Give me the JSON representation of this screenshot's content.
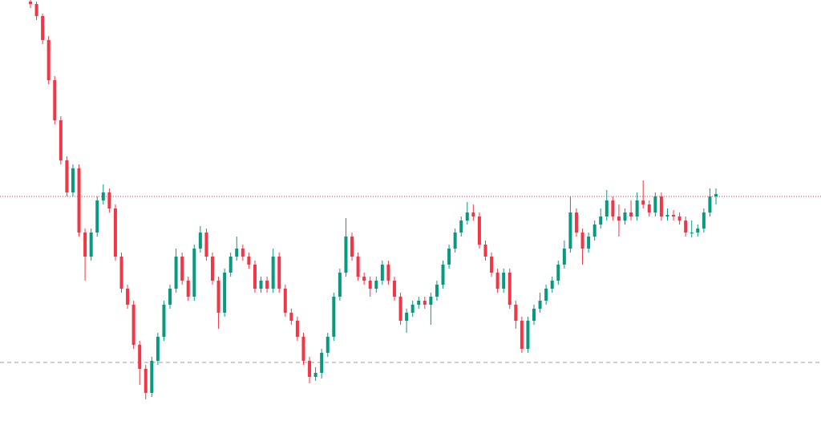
{
  "chart_data": {
    "type": "candlestick",
    "up_color": "#089981",
    "down_color": "#f23645",
    "ylim": [
      0,
      540
    ],
    "open": [
      538,
      535,
      520,
      490,
      440,
      390,
      340,
      300,
      330,
      250,
      220,
      250,
      290,
      300,
      280,
      220,
      180,
      160,
      110,
      80,
      50,
      90,
      120,
      160,
      180,
      220,
      190,
      170,
      230,
      250,
      220,
      190,
      150,
      200,
      220,
      230,
      220,
      210,
      180,
      190,
      180,
      220,
      180,
      150,
      140,
      120,
      90,
      70,
      75,
      100,
      120,
      170,
      200,
      245,
      220,
      195,
      190,
      180,
      190,
      210,
      190,
      170,
      140,
      150,
      160,
      165,
      160,
      170,
      185,
      210,
      230,
      250,
      265,
      275,
      270,
      235,
      220,
      200,
      180,
      200,
      160,
      140,
      105,
      140,
      155,
      165,
      180,
      190,
      210,
      230,
      275,
      250,
      230,
      245,
      260,
      270,
      290,
      270,
      265,
      275,
      270,
      290,
      285,
      275,
      295,
      270,
      272,
      270,
      265,
      250,
      250,
      255,
      275,
      295
    ],
    "high": [
      540,
      538,
      523,
      495,
      445,
      395,
      345,
      335,
      335,
      255,
      255,
      295,
      310,
      305,
      285,
      225,
      185,
      165,
      115,
      85,
      95,
      125,
      165,
      185,
      230,
      225,
      195,
      235,
      258,
      255,
      225,
      195,
      205,
      225,
      245,
      235,
      225,
      215,
      195,
      195,
      230,
      225,
      185,
      155,
      145,
      125,
      95,
      82,
      105,
      125,
      175,
      205,
      268,
      250,
      225,
      200,
      195,
      195,
      215,
      215,
      195,
      175,
      155,
      165,
      170,
      170,
      175,
      190,
      215,
      235,
      255,
      270,
      288,
      285,
      275,
      240,
      225,
      205,
      205,
      205,
      165,
      145,
      145,
      160,
      175,
      185,
      195,
      215,
      240,
      295,
      280,
      255,
      250,
      265,
      280,
      303,
      295,
      285,
      280,
      290,
      300,
      315,
      290,
      300,
      300,
      280,
      278,
      275,
      270,
      265,
      260,
      280,
      305,
      305
    ],
    "low": [
      530,
      515,
      485,
      435,
      385,
      335,
      295,
      295,
      245,
      190,
      215,
      245,
      285,
      275,
      215,
      175,
      155,
      105,
      60,
      42,
      45,
      85,
      115,
      155,
      175,
      185,
      165,
      165,
      225,
      215,
      185,
      130,
      145,
      195,
      215,
      215,
      205,
      175,
      175,
      175,
      175,
      175,
      145,
      135,
      115,
      85,
      62,
      65,
      68,
      95,
      115,
      165,
      195,
      215,
      190,
      185,
      170,
      175,
      185,
      185,
      165,
      135,
      125,
      145,
      155,
      155,
      135,
      165,
      180,
      205,
      225,
      245,
      260,
      265,
      230,
      215,
      195,
      175,
      175,
      155,
      130,
      100,
      100,
      135,
      150,
      160,
      175,
      185,
      205,
      225,
      245,
      210,
      225,
      240,
      255,
      265,
      265,
      245,
      260,
      265,
      265,
      280,
      270,
      270,
      265,
      265,
      265,
      260,
      245,
      244,
      245,
      250,
      270,
      285
    ],
    "close": [
      535,
      520,
      490,
      440,
      390,
      340,
      300,
      330,
      250,
      220,
      250,
      290,
      300,
      280,
      220,
      180,
      160,
      110,
      80,
      50,
      90,
      120,
      160,
      180,
      220,
      190,
      170,
      230,
      250,
      220,
      190,
      150,
      200,
      220,
      230,
      220,
      210,
      180,
      190,
      180,
      220,
      180,
      150,
      140,
      120,
      90,
      70,
      75,
      100,
      120,
      170,
      200,
      245,
      220,
      195,
      190,
      180,
      190,
      210,
      190,
      170,
      140,
      150,
      160,
      165,
      160,
      170,
      185,
      210,
      230,
      250,
      265,
      275,
      270,
      235,
      220,
      200,
      180,
      200,
      160,
      140,
      105,
      140,
      155,
      165,
      180,
      190,
      210,
      230,
      275,
      250,
      230,
      245,
      260,
      270,
      290,
      270,
      265,
      275,
      270,
      290,
      285,
      275,
      295,
      270,
      272,
      270,
      265,
      250,
      250,
      255,
      275,
      295,
      298
    ],
    "ref_lines": [
      {
        "value": 295,
        "color": "#f23645",
        "style": "dotted"
      },
      {
        "value": 88,
        "color": "#9e9e9e",
        "style": "dashed"
      }
    ]
  }
}
